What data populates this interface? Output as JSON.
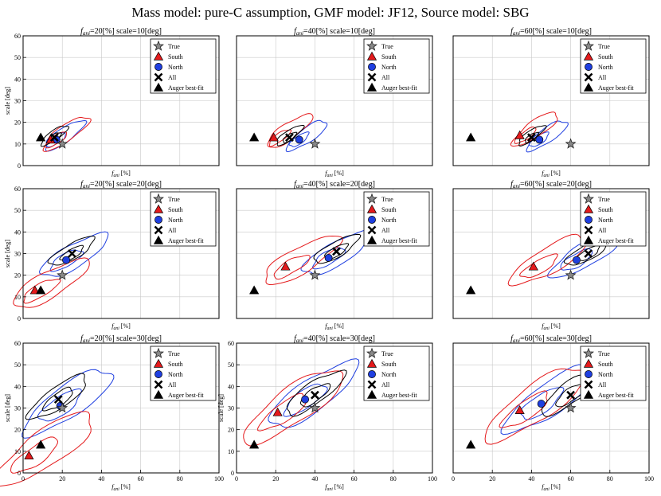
{
  "figure": {
    "title": "Mass model: pure-C assumption, GMF model: JF12, Source model: SBG"
  },
  "legend_entries": [
    "True",
    "South",
    "North",
    "All",
    "Auger best-fit"
  ],
  "colors": {
    "true": "#888888",
    "south": "#e41a1c",
    "north": "#1f3fe0",
    "all": "#000000",
    "auger": "#000000"
  },
  "chart_data": [
    {
      "type": "scatter",
      "title": "f_ani=20[%] scale=10[deg]",
      "title_main": "f",
      "title_sub": "ani",
      "title_rest": "=20[%] scale=10[deg]",
      "xlabel": "f_ani [%]",
      "xlabel_main": "f",
      "xlabel_sub": "ani",
      "xlabel_rest": " [%]",
      "ylabel": "scale [deg]",
      "xlim": [
        0,
        100
      ],
      "ylim": [
        0,
        60
      ],
      "xticks": [],
      "yticks": [
        0,
        10,
        20,
        30,
        40,
        50,
        60
      ],
      "grid": true,
      "legend": "top-right",
      "points": {
        "true": [
          20,
          10
        ],
        "south": [
          14,
          12
        ],
        "north": [
          17,
          12
        ],
        "all": [
          16,
          13
        ],
        "auger": [
          9,
          13
        ]
      }
    },
    {
      "type": "scatter",
      "title": "f_ani=40[%] scale=10[deg]",
      "title_main": "f",
      "title_sub": "ani",
      "title_rest": "=40[%] scale=10[deg]",
      "xlabel": "f_ani [%]",
      "xlabel_main": "f",
      "xlabel_sub": "ani",
      "xlabel_rest": " [%]",
      "ylabel": "",
      "xlim": [
        0,
        100
      ],
      "ylim": [
        0,
        60
      ],
      "xticks": [],
      "yticks": [],
      "grid": true,
      "legend": "top-right",
      "points": {
        "true": [
          40,
          10
        ],
        "south": [
          19,
          13
        ],
        "north": [
          32,
          12
        ],
        "all": [
          27,
          13
        ],
        "auger": [
          9,
          13
        ]
      }
    },
    {
      "type": "scatter",
      "title": "f_ani=60[%] scale=10[deg]",
      "title_main": "f",
      "title_sub": "ani",
      "title_rest": "=60[%] scale=10[deg]",
      "xlabel": "f_ani [%]",
      "xlabel_main": "f",
      "xlabel_sub": "ani",
      "xlabel_rest": " [%]",
      "ylabel": "",
      "xlim": [
        0,
        100
      ],
      "ylim": [
        0,
        60
      ],
      "xticks": [],
      "yticks": [],
      "grid": true,
      "legend": "top-right",
      "points": {
        "true": [
          60,
          10
        ],
        "south": [
          34,
          14
        ],
        "north": [
          44,
          12
        ],
        "all": [
          40,
          13
        ],
        "auger": [
          9,
          13
        ]
      }
    },
    {
      "type": "scatter",
      "title": "f_ani=20[%] scale=20[deg]",
      "title_main": "f",
      "title_sub": "ani",
      "title_rest": "=20[%] scale=20[deg]",
      "xlabel": "f_ani [%]",
      "xlabel_main": "f",
      "xlabel_sub": "ani",
      "xlabel_rest": " [%]",
      "ylabel": "scale [deg]",
      "xlim": [
        0,
        100
      ],
      "ylim": [
        0,
        60
      ],
      "xticks": [],
      "yticks": [
        0,
        10,
        20,
        30,
        40,
        50,
        60
      ],
      "grid": true,
      "legend": "top-right",
      "points": {
        "true": [
          20,
          20
        ],
        "south": [
          6,
          13
        ],
        "north": [
          22,
          27
        ],
        "all": [
          25,
          30
        ],
        "auger": [
          9,
          13
        ]
      }
    },
    {
      "type": "scatter",
      "title": "f_ani=40[%] scale=20[deg]",
      "title_main": "f",
      "title_sub": "ani",
      "title_rest": "=40[%] scale=20[deg]",
      "xlabel": "f_ani [%]",
      "xlabel_main": "f",
      "xlabel_sub": "ani",
      "xlabel_rest": " [%]",
      "ylabel": "",
      "xlim": [
        0,
        100
      ],
      "ylim": [
        0,
        60
      ],
      "xticks": [],
      "yticks": [],
      "grid": true,
      "legend": "top-right",
      "points": {
        "true": [
          40,
          20
        ],
        "south": [
          25,
          24
        ],
        "north": [
          47,
          28
        ],
        "all": [
          51,
          31
        ],
        "auger": [
          9,
          13
        ]
      }
    },
    {
      "type": "scatter",
      "title": "f_ani=60[%] scale=20[deg]",
      "title_main": "f",
      "title_sub": "ani",
      "title_rest": "=60[%] scale=20[deg]",
      "xlabel": "f_ani [%]",
      "xlabel_main": "f",
      "xlabel_sub": "ani",
      "xlabel_rest": " [%]",
      "ylabel": "",
      "xlim": [
        0,
        100
      ],
      "ylim": [
        0,
        60
      ],
      "xticks": [],
      "yticks": [],
      "grid": true,
      "legend": "top-right",
      "points": {
        "true": [
          60,
          20
        ],
        "south": [
          41,
          24
        ],
        "north": [
          63,
          27
        ],
        "all": [
          69,
          30
        ],
        "auger": [
          9,
          13
        ]
      }
    },
    {
      "type": "scatter",
      "title": "f_ani=20[%] scale=30[deg]",
      "title_main": "f",
      "title_sub": "ani",
      "title_rest": "=20[%] scale=30[deg]",
      "xlabel": "f_ani [%]",
      "xlabel_main": "f",
      "xlabel_sub": "ani",
      "xlabel_rest": " [%]",
      "ylabel": "scale [deg]",
      "xlim": [
        0,
        100
      ],
      "ylim": [
        0,
        60
      ],
      "xticks": [
        0,
        20,
        40,
        60,
        80,
        100
      ],
      "yticks": [
        0,
        10,
        20,
        30,
        40,
        50,
        60
      ],
      "grid": true,
      "legend": "top-right",
      "points": {
        "true": [
          20,
          30
        ],
        "south": [
          3,
          8
        ],
        "north": [
          19,
          31
        ],
        "all": [
          18,
          34
        ],
        "auger": [
          9,
          13
        ]
      }
    },
    {
      "type": "scatter",
      "title": "f_ani=40[%] scale=30[deg]",
      "title_main": "f",
      "title_sub": "ani",
      "title_rest": "=40[%] scale=30[deg]",
      "xlabel": "f_ani [%]",
      "xlabel_main": "f",
      "xlabel_sub": "ani",
      "xlabel_rest": " [%]",
      "ylabel": "scale [deg]",
      "xlim": [
        0,
        100
      ],
      "ylim": [
        0,
        60
      ],
      "xticks": [
        0,
        20,
        40,
        60,
        80,
        100
      ],
      "yticks": [
        0,
        10,
        20,
        30,
        40,
        50,
        60
      ],
      "grid": true,
      "legend": "top-right",
      "points": {
        "true": [
          40,
          30
        ],
        "south": [
          21,
          28
        ],
        "north": [
          35,
          34
        ],
        "all": [
          40,
          36
        ],
        "auger": [
          9,
          13
        ]
      }
    },
    {
      "type": "scatter",
      "title": "f_ani=60[%] scale=30[deg]",
      "title_main": "f",
      "title_sub": "ani",
      "title_rest": "=60[%] scale=30[deg]",
      "xlabel": "f_ani [%]",
      "xlabel_main": "f",
      "xlabel_sub": "ani",
      "xlabel_rest": " [%]",
      "ylabel": "",
      "xlim": [
        0,
        100
      ],
      "ylim": [
        0,
        60
      ],
      "xticks": [
        0,
        20,
        40,
        60,
        80,
        100
      ],
      "yticks": [],
      "grid": true,
      "legend": "top-right",
      "points": {
        "true": [
          60,
          30
        ],
        "south": [
          34,
          29
        ],
        "north": [
          45,
          32
        ],
        "all": [
          60,
          36
        ],
        "auger": [
          9,
          13
        ]
      }
    }
  ]
}
